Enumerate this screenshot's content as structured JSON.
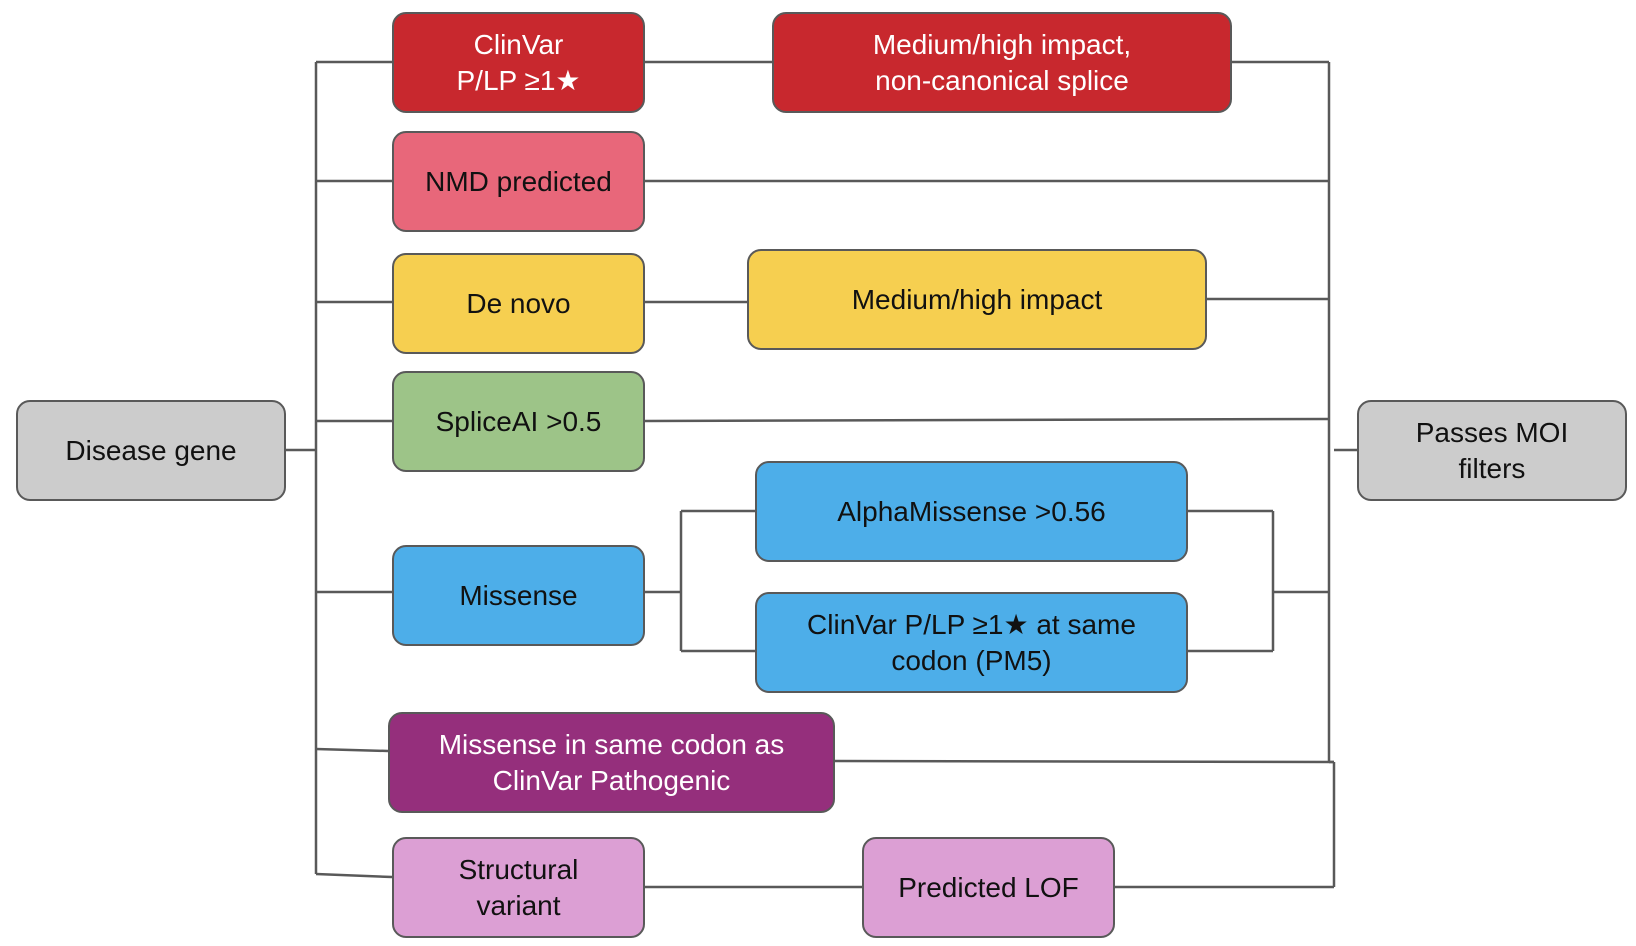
{
  "nodes": {
    "disease_gene": "Disease gene",
    "passes_moi": "Passes MOI\nfilters",
    "clinvar_plp": "ClinVar\nP/LP ≥1★",
    "medium_high_splice": "Medium/high impact,\nnon-canonical splice",
    "nmd_predicted": "NMD predicted",
    "de_novo": "De novo",
    "medium_high": "Medium/high impact",
    "spliceai": "SpliceAI >0.5",
    "missense": "Missense",
    "alphamissense": "AlphaMissense >0.56",
    "clinvar_pm5": "ClinVar P/LP ≥1★ at same\ncodon (PM5)",
    "missense_same_codon": "Missense in same codon as\nClinVar Pathogenic",
    "structural_variant": "Structural\nvariant",
    "predicted_lof": "Predicted LOF"
  },
  "colors": {
    "gray": "#cccccc",
    "red": "#c8282e",
    "pink": "#e8677a",
    "yellow": "#f6cf50",
    "green": "#9dc488",
    "blue": "#4daee9",
    "purple": "#952f7c",
    "lilac": "#dc9fd4",
    "outline": "#595959"
  }
}
